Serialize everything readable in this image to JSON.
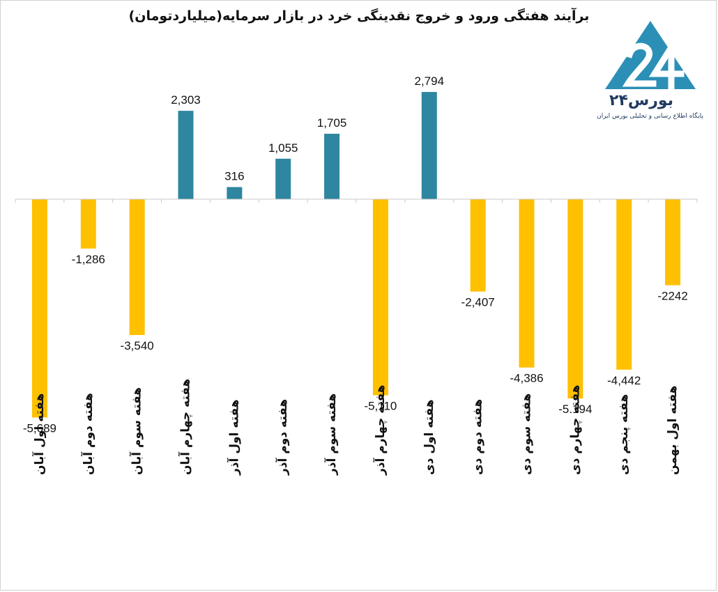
{
  "chart_data": {
    "type": "bar",
    "title": "برآیند هفتگی ورود و خروج نقدینگی خرد در بازار سرمایه(میلیاردتومان)",
    "categories": [
      "هفته اول آبان",
      "هفته دوم آبان",
      "هفته سوم آبان",
      "هفته چهارم آبان",
      "هفته اول آذر",
      "هفته دوم آذر",
      "هفته سوم آذر",
      "هفته چهارم آذر",
      "هفته اول دی",
      "هفته دوم دی",
      "هفته سوم دی",
      "هفته چهارم دی",
      "هفته پنجم دی",
      "هفته اول بهمن"
    ],
    "values": [
      -5689,
      -1286,
      -3540,
      2303,
      316,
      1055,
      1705,
      -5110,
      2794,
      -2407,
      -4386,
      -5194,
      -4442,
      -2242
    ],
    "labels": [
      "-5,689",
      "-1,286",
      "-3,540",
      "2,303",
      "316",
      "1,055",
      "1,705",
      "-5,110",
      "2,794",
      "-2,407",
      "-4,386",
      "-5.194",
      "-4,442",
      "-2242"
    ],
    "colors": {
      "positive": "#2e86a0",
      "negative": "#ffc000",
      "axis": "#c8c8c8"
    },
    "ylim": [
      -6000,
      3000
    ],
    "grid": false,
    "legend": "none"
  },
  "logo": {
    "brand_text": "بورس۲۴",
    "tagline": "پایگاه اطلاع رسانی و تحلیلی بورس ایران",
    "icon": "bourse24-triangle-logo-icon"
  }
}
